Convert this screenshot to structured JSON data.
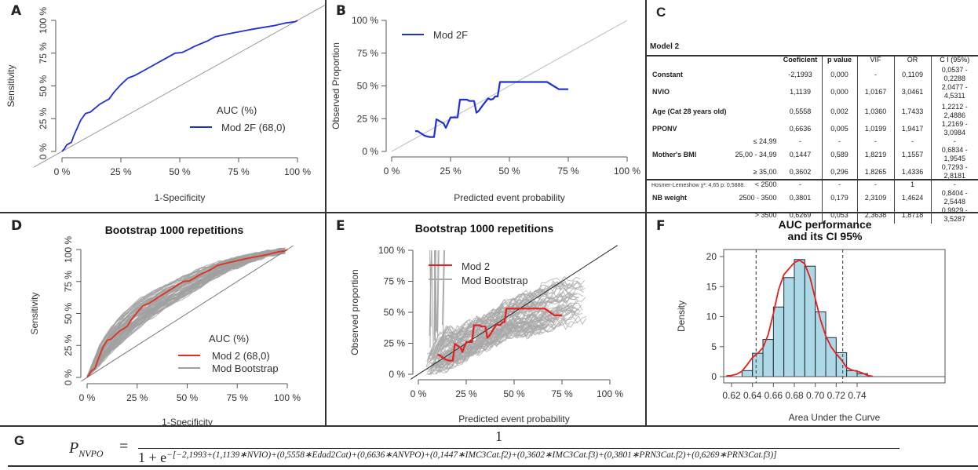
{
  "panels": {
    "A": {
      "label": "A",
      "chart_data": {
        "type": "line",
        "title": "",
        "xlabel": "1-Specificity",
        "ylabel": "Sensitivity",
        "xlim": [
          0,
          100
        ],
        "ylim": [
          0,
          100
        ],
        "xticks": [
          "0 %",
          "25 %",
          "50 %",
          "75 %",
          "100 %"
        ],
        "yticks": [
          "0 %",
          "25 %",
          "50 %",
          "75 %",
          "100 %"
        ],
        "legend_title": "AUC (%)",
        "legend_position": "bottom-right",
        "reference_line": {
          "x": [
            0,
            100
          ],
          "y": [
            0,
            100
          ],
          "color": "#999999"
        },
        "series": [
          {
            "name": "Mod 2F (68,0)",
            "color": "#1f2fd6",
            "x": [
              0,
              1,
              2,
              4,
              5,
              7,
              8,
              10,
              12,
              14,
              16,
              18,
              20,
              22,
              25,
              28,
              31,
              35,
              40,
              45,
              48,
              51,
              54,
              56,
              58,
              62,
              65,
              70,
              80,
              90,
              95,
              99,
              100
            ],
            "y": [
              0,
              2,
              5,
              7,
              12,
              20,
              24,
              29,
              30,
              33,
              36,
              38,
              40,
              45,
              51,
              56,
              58,
              62,
              67,
              72,
              75,
              75.5,
              78,
              80,
              81.5,
              84.5,
              87.5,
              89.5,
              93,
              96,
              98,
              99,
              100
            ]
          }
        ]
      }
    },
    "B": {
      "label": "B",
      "chart_data": {
        "type": "line",
        "title": "",
        "xlabel": "Predicted event probability",
        "ylabel": "Observed Proportion",
        "xlim": [
          0,
          100
        ],
        "ylim": [
          0,
          100
        ],
        "xticks": [
          "0 %",
          "25 %",
          "50 %",
          "75 %",
          "100 %"
        ],
        "yticks": [
          "0 %",
          "25 %",
          "50 %",
          "75 %",
          "100 %"
        ],
        "legend_position": "top-left",
        "reference_line": {
          "x": [
            0,
            100
          ],
          "y": [
            0,
            100
          ],
          "color": "#bbbbbb"
        },
        "series": [
          {
            "name": "Mod 2F",
            "color": "#1f2fd6",
            "x": [
              10,
              11,
              14,
              16,
              18,
              19,
              22,
              23,
              25,
              28,
              29,
              32,
              33,
              35,
              36,
              37,
              39,
              41,
              42,
              43,
              44,
              45,
              46,
              50,
              55,
              66,
              71,
              75
            ],
            "y": [
              15.5,
              15.5,
              12,
              11,
              11,
              24.5,
              21.5,
              18,
              26,
              26,
              39.5,
              39.5,
              38.5,
              38.5,
              29.5,
              31,
              36,
              40.5,
              39.5,
              40,
              42,
              42,
              53,
              53,
              53,
              53,
              47.5,
              47.5
            ]
          }
        ]
      }
    },
    "C": {
      "label": "C",
      "model_title": "Model 2",
      "headers": [
        "",
        "",
        "Coeficient",
        "p value",
        "VIF",
        "OR",
        "C I  (95%)"
      ],
      "rows": [
        {
          "label": "Constant",
          "sub": "",
          "coef": "-2,1993",
          "p": "0,000",
          "vif": "-",
          "or": "0,1109",
          "ci": "0,0537 - 0,2288"
        },
        {
          "label": "NVIO",
          "sub": "",
          "coef": "1,1139",
          "p": "0,000",
          "vif": "1,0167",
          "or": "3,0461",
          "ci": "2,0477 - 4,5311"
        },
        {
          "label": "Age (Cat 28 years old)",
          "sub": "",
          "coef": "0,5558",
          "p": "0,002",
          "vif": "1,0360",
          "or": "1,7433",
          "ci": "1,2212 - 2,4886"
        },
        {
          "label": "PPONV",
          "sub": "",
          "coef": "0,6636",
          "p": "0,005",
          "vif": "1,0199",
          "or": "1,9417",
          "ci": "1,2169 - 3,0984"
        },
        {
          "label": "",
          "sub": "≤ 24,99",
          "coef": "-",
          "p": "-",
          "vif": "-",
          "or": "-",
          "ci": "-"
        },
        {
          "label": "Mother's BMI",
          "sub": "25,00 - 34,99",
          "coef": "0,1447",
          "p": "0,589",
          "vif": "1,8219",
          "or": "1,1557",
          "ci": "0,6834 - 1,9545"
        },
        {
          "label": "",
          "sub": "≥ 35,00",
          "coef": "0,3602",
          "p": "0,296",
          "vif": "1,8265",
          "or": "1,4336",
          "ci": "0,7293 - 2,8181"
        },
        {
          "label": "",
          "sub": "< 2500",
          "coef": "-",
          "p": "-",
          "vif": "-",
          "or": "1",
          "ci": "-"
        },
        {
          "label": "NB weight",
          "sub": "2500 - 3500",
          "coef": "0,3801",
          "p": "0,179",
          "vif": "2,3109",
          "or": "1,4624",
          "ci": "0,8404 - 2,5448"
        },
        {
          "label": "",
          "sub": "> 3500",
          "coef": "0,6269",
          "p": "0,053",
          "vif": "2,3638",
          "or": "1,8718",
          "ci": "0,9929 - 3,5287"
        }
      ],
      "footnote": "Hosmer-Lemeshow χ²: 4,65 p: 0,5888."
    },
    "D": {
      "label": "D",
      "chart_data": {
        "type": "line",
        "title": "Bootstrap 1000 repetitions",
        "xlabel": "1-Specificity",
        "ylabel": "Sensitivity",
        "xlim": [
          0,
          100
        ],
        "ylim": [
          0,
          100
        ],
        "xticks": [
          "0 %",
          "25 %",
          "50 %",
          "75 %",
          "100 %"
        ],
        "yticks": [
          "0 %",
          "25 %",
          "50 %",
          "75 %",
          "100 %"
        ],
        "legend_title": "AUC (%)",
        "legend_position": "bottom-right",
        "reference_line": {
          "x": [
            0,
            100
          ],
          "y": [
            0,
            100
          ],
          "color": "#777777"
        },
        "bootstrap_band": {
          "name": "Mod Bootstrap",
          "color": "#a0a0a0",
          "n_repetitions": 1000,
          "x": [
            0,
            5,
            10,
            15,
            20,
            25,
            30,
            40,
            50,
            60,
            70,
            80,
            90,
            100
          ],
          "lower": [
            0,
            8,
            16,
            24,
            31,
            38,
            44,
            55,
            64,
            74,
            83,
            89,
            95,
            98
          ],
          "upper": [
            0,
            22,
            36,
            46,
            55,
            61,
            66,
            74,
            82,
            88,
            93,
            96,
            99,
            102
          ]
        },
        "series": [
          {
            "name": "Mod 2 (68,0)",
            "color": "#e0301e",
            "x": [
              0,
              1,
              2,
              4,
              5,
              7,
              8,
              10,
              12,
              14,
              16,
              18,
              20,
              22,
              25,
              28,
              31,
              35,
              40,
              45,
              48,
              51,
              54,
              56,
              58,
              62,
              65,
              70,
              80,
              90,
              95,
              99,
              100
            ],
            "y": [
              0,
              2,
              5,
              7,
              12,
              20,
              24,
              29,
              30,
              33,
              36,
              38,
              40,
              45,
              51,
              56,
              58,
              62,
              67,
              72,
              75,
              75.5,
              78,
              80,
              81.5,
              84.5,
              87.5,
              89.5,
              93,
              96,
              98,
              99,
              100
            ]
          },
          {
            "name": "Mod Bootstrap",
            "color": "#a0a0a0",
            "x": [],
            "y": []
          }
        ]
      }
    },
    "E": {
      "label": "E",
      "chart_data": {
        "type": "line",
        "title": "Bootstrap 1000  repetitions",
        "xlabel": "Predicted event probability",
        "ylabel": "Observed proportion",
        "xlim": [
          0,
          100
        ],
        "ylim": [
          0,
          100
        ],
        "xticks": [
          "0 %",
          "25 %",
          "50 %",
          "75 %",
          "100 %"
        ],
        "yticks": [
          "0 %",
          "25 %",
          "50 %",
          "75 %",
          "100 %"
        ],
        "legend_position": "top-left",
        "reference_line": {
          "x": [
            0,
            100
          ],
          "y": [
            0,
            100
          ],
          "color": "#222222"
        },
        "bootstrap_band": {
          "name": "Mod Bootstrap",
          "color": "#a8a8a8",
          "n_repetitions": 1000,
          "x": [
            4,
            10,
            15,
            20,
            25,
            30,
            35,
            40,
            45,
            50,
            55,
            60,
            65,
            70,
            75,
            80,
            85,
            90
          ],
          "lower": [
            0,
            2,
            4,
            8,
            12,
            16,
            20,
            24,
            28,
            32,
            30,
            32,
            33,
            35,
            38,
            40,
            42,
            46
          ],
          "upper": [
            12,
            30,
            38,
            36,
            40,
            45,
            48,
            52,
            58,
            62,
            65,
            68,
            72,
            74,
            76,
            76,
            74,
            72
          ]
        },
        "series": [
          {
            "name": "Mod 2",
            "color": "#e51e1e",
            "x": [
              10,
              11,
              14,
              16,
              18,
              19,
              22,
              23,
              25,
              28,
              29,
              32,
              33,
              35,
              36,
              37,
              39,
              41,
              42,
              43,
              44,
              45,
              46,
              50,
              55,
              66,
              71,
              75
            ],
            "y": [
              15.5,
              15.5,
              12,
              11,
              11,
              24.5,
              21.5,
              18,
              26,
              26,
              39.5,
              39.5,
              38.5,
              38.5,
              29.5,
              31,
              36,
              40.5,
              39.5,
              40,
              42,
              42,
              53,
              53,
              53,
              53,
              47.5,
              47.5
            ]
          },
          {
            "name": "Mod Bootstrap",
            "color": "#a8a8a8",
            "x": [],
            "y": []
          }
        ]
      }
    },
    "F": {
      "label": "F",
      "chart_data": {
        "type": "bar",
        "title": "AUC performance\nand its CI 95%",
        "title_lines": [
          "AUC performance",
          "and its CI 95%"
        ],
        "xlabel": "Area Under the Curve",
        "ylabel": "Density",
        "xlim": [
          0.615,
          0.755
        ],
        "ylim": [
          0,
          20
        ],
        "xticks": [
          "0.62",
          "0.64",
          "0.66",
          "0.68",
          "0.70",
          "0.72",
          "0.74"
        ],
        "yticks": [
          "0",
          "5",
          "10",
          "15",
          "20"
        ],
        "bins": [
          0.63,
          0.64,
          0.65,
          0.66,
          0.67,
          0.68,
          0.69,
          0.7,
          0.71,
          0.72,
          0.73,
          0.74,
          0.75
        ],
        "values": [
          1.0,
          3.9,
          6.2,
          11.6,
          16.5,
          19.5,
          18.4,
          10.8,
          6.5,
          4.0,
          1.0,
          0.5
        ],
        "bar_color": "#add8e6",
        "ci_lines": [
          0.6435,
          0.7262
        ],
        "density_curve": {
          "color": "#e51e1e",
          "x": [
            0.615,
            0.62,
            0.625,
            0.63,
            0.635,
            0.64,
            0.645,
            0.65,
            0.655,
            0.66,
            0.665,
            0.67,
            0.675,
            0.68,
            0.685,
            0.69,
            0.695,
            0.7,
            0.705,
            0.71,
            0.715,
            0.72,
            0.725,
            0.73,
            0.735,
            0.74,
            0.745,
            0.75,
            0.755
          ],
          "y": [
            0.1,
            0.2,
            0.4,
            0.9,
            2.0,
            3.2,
            3.9,
            4.8,
            7.0,
            10.5,
            14.5,
            17.0,
            18.0,
            19.0,
            19.4,
            18.8,
            16.5,
            13.0,
            9.5,
            6.8,
            5.0,
            3.8,
            2.8,
            1.5,
            1.1,
            0.9,
            0.6,
            0.2,
            0.05
          ]
        }
      }
    },
    "G": {
      "label": "G",
      "lhs": "P",
      "lhs_sub": "NVPO",
      "equals": "=",
      "numerator": "1",
      "denominator_base": "1 + e",
      "exponent": "−[−2,1993+(1,1139∗NVIO)+(0,5558∗Edad2Cat)+(0,6636∗ANVPO)+(0,1447∗IMC3Cat.f2)+(0,3602∗IMC3Cat.f3)+(0,3801∗PRN3Cat.f2)+(0,6269∗PRN3Cat.f3)]"
    }
  }
}
